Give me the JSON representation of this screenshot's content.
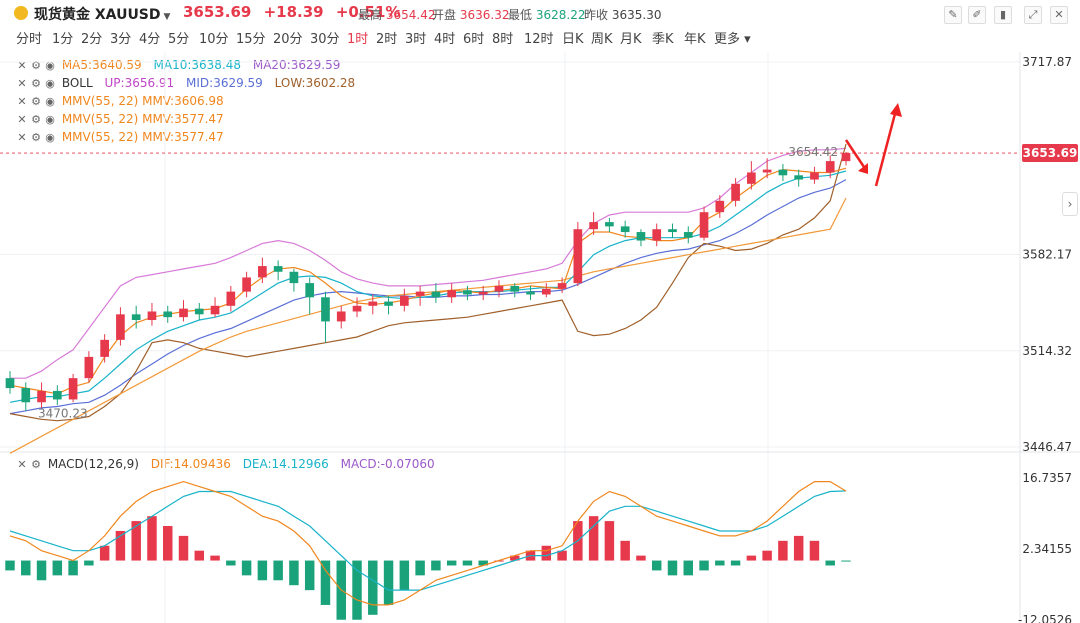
{
  "header": {
    "title": "现货黄金 XAUUSD",
    "last": "3653.69",
    "change": "+18.39",
    "change_pct": "+0.51%",
    "stats": [
      {
        "label": "最高",
        "value": "3654.42"
      },
      {
        "label": "开盘",
        "value": "3636.32"
      },
      {
        "label": "最低",
        "value": "3628.22"
      },
      {
        "label": "昨收",
        "value": "3635.30"
      }
    ]
  },
  "timeframes": [
    "分时",
    "1分",
    "2分",
    "3分",
    "4分",
    "5分",
    "10分",
    "15分",
    "20分",
    "30分",
    "1时",
    "2时",
    "3时",
    "4时",
    "6时",
    "8时",
    "12时",
    "日K",
    "周K",
    "月K",
    "季K",
    "年K",
    "更多"
  ],
  "active_timeframe": "1时",
  "indicators": [
    {
      "name": "MA5:3640.59",
      "extra": [
        "MA10:3638.48",
        "MA20:3629.59"
      ]
    },
    {
      "name": "BOLL",
      "extra": [
        "UP:3656.91",
        "MID:3629.59",
        "LOW:3602.28"
      ]
    },
    {
      "name": "MMV(55, 22) MMV:3606.98",
      "extra": []
    },
    {
      "name": "MMV(55, 22) MMV:3577.47",
      "extra": []
    },
    {
      "name": "MMV(55, 22) MMV:3577.47",
      "extra": []
    }
  ],
  "macd_legend": {
    "name": "MACD(12,26,9)",
    "dif": "DIF:14.09436",
    "dea": "DEA:14.12966",
    "macd": "MACD:-0.07060"
  },
  "chart_data": {
    "type": "candlestick",
    "price_axis": {
      "ticks": [
        3717.87,
        3582.17,
        3514.32,
        3446.47
      ],
      "range": [
        3446.47,
        3717.87
      ]
    },
    "current_price_label": "3653.69",
    "annotations": {
      "high": "3654.42",
      "low": "3470.23"
    },
    "ma5": [
      3490,
      3488,
      3486,
      3484,
      3489,
      3492,
      3510,
      3525,
      3534,
      3538,
      3540,
      3542,
      3543,
      3544,
      3548,
      3558,
      3566,
      3572,
      3573,
      3570,
      3562,
      3553,
      3548,
      3547,
      3548,
      3550,
      3553,
      3555,
      3557,
      3556,
      3555,
      3557,
      3558,
      3560,
      3559,
      3558,
      3590,
      3598,
      3598,
      3595,
      3594,
      3592,
      3592,
      3594,
      3606,
      3612,
      3622,
      3630,
      3638,
      3642,
      3641,
      3640,
      3640,
      3643
    ],
    "ma10": [
      3478,
      3480,
      3482,
      3482,
      3484,
      3486,
      3495,
      3505,
      3515,
      3522,
      3528,
      3532,
      3536,
      3538,
      3541,
      3548,
      3555,
      3562,
      3566,
      3567,
      3566,
      3562,
      3556,
      3553,
      3552,
      3551,
      3552,
      3553,
      3555,
      3556,
      3556,
      3556,
      3557,
      3558,
      3559,
      3559,
      3570,
      3582,
      3588,
      3592,
      3594,
      3594,
      3594,
      3594,
      3597,
      3602,
      3610,
      3618,
      3626,
      3632,
      3636,
      3637,
      3638,
      3641
    ],
    "ma20": [
      3470,
      3472,
      3474,
      3475,
      3477,
      3478,
      3483,
      3490,
      3498,
      3505,
      3512,
      3518,
      3523,
      3527,
      3530,
      3535,
      3540,
      3545,
      3550,
      3553,
      3555,
      3556,
      3555,
      3554,
      3553,
      3553,
      3552,
      3552,
      3553,
      3553,
      3554,
      3554,
      3555,
      3556,
      3556,
      3557,
      3561,
      3566,
      3571,
      3576,
      3580,
      3583,
      3585,
      3586,
      3589,
      3592,
      3597,
      3603,
      3610,
      3616,
      3622,
      3626,
      3629,
      3635
    ],
    "boll_up": [
      3495,
      3495,
      3500,
      3508,
      3515,
      3530,
      3545,
      3560,
      3566,
      3568,
      3570,
      3572,
      3574,
      3576,
      3580,
      3585,
      3590,
      3592,
      3590,
      3585,
      3578,
      3570,
      3565,
      3562,
      3560,
      3560,
      3560,
      3561,
      3562,
      3563,
      3564,
      3566,
      3568,
      3570,
      3572,
      3576,
      3592,
      3604,
      3610,
      3612,
      3612,
      3612,
      3612,
      3612,
      3615,
      3622,
      3632,
      3640,
      3648,
      3652,
      3655,
      3656,
      3656,
      3657
    ],
    "boll_low": [
      3440,
      3440,
      3442,
      3444,
      3446,
      3448,
      3450,
      3452,
      3455,
      3462,
      3478,
      3490,
      3496,
      3498,
      3505,
      3515,
      3525,
      3530,
      3532,
      3530,
      3525,
      3530,
      3540,
      3547,
      3548,
      3549,
      3549,
      3550,
      3550,
      3552,
      3553,
      3554,
      3555,
      3556,
      3554,
      3546,
      3532,
      3528,
      3532,
      3537,
      3543,
      3549,
      3553,
      3560,
      3568,
      3574,
      3580,
      3585,
      3588,
      3588,
      3590,
      3594,
      3600,
      3602
    ],
    "mmv_slow": [
      3442,
      3448,
      3454,
      3460,
      3466,
      3472,
      3478,
      3484,
      3490,
      3496,
      3502,
      3508,
      3514,
      3519,
      3524,
      3528,
      3531,
      3534,
      3537,
      3540,
      3543,
      3546,
      3549,
      3551,
      3553,
      3554,
      3555,
      3556,
      3557,
      3558,
      3559,
      3560,
      3561,
      3562,
      3563,
      3564,
      3567,
      3570,
      3572,
      3574,
      3576,
      3578,
      3580,
      3582,
      3584,
      3586,
      3588,
      3590,
      3592,
      3594,
      3596,
      3598,
      3600,
      3622
    ],
    "mmv_fast": [
      3470,
      3468,
      3466,
      3465,
      3466,
      3468,
      3475,
      3484,
      3500,
      3520,
      3522,
      3520,
      3516,
      3514,
      3512,
      3510,
      3512,
      3514,
      3516,
      3518,
      3520,
      3522,
      3524,
      3528,
      3532,
      3534,
      3535,
      3536,
      3537,
      3538,
      3540,
      3542,
      3544,
      3546,
      3548,
      3550,
      3528,
      3525,
      3526,
      3530,
      3536,
      3545,
      3562,
      3580,
      3590,
      3588,
      3585,
      3586,
      3590,
      3596,
      3600,
      3608,
      3620,
      3660
    ],
    "candles": [
      [
        3495,
        3488,
        3500,
        3484
      ],
      [
        3488,
        3478,
        3492,
        3472
      ],
      [
        3478,
        3486,
        3492,
        3474
      ],
      [
        3486,
        3480,
        3490,
        3476
      ],
      [
        3480,
        3495,
        3498,
        3478
      ],
      [
        3495,
        3510,
        3514,
        3492
      ],
      [
        3510,
        3522,
        3526,
        3506
      ],
      [
        3522,
        3540,
        3545,
        3518
      ],
      [
        3540,
        3536,
        3546,
        3530
      ],
      [
        3536,
        3542,
        3548,
        3532
      ],
      [
        3542,
        3538,
        3546,
        3534
      ],
      [
        3538,
        3544,
        3550,
        3535
      ],
      [
        3544,
        3540,
        3548,
        3536
      ],
      [
        3540,
        3546,
        3552,
        3538
      ],
      [
        3546,
        3556,
        3560,
        3542
      ],
      [
        3556,
        3566,
        3570,
        3552
      ],
      [
        3566,
        3574,
        3580,
        3562
      ],
      [
        3574,
        3570,
        3578,
        3564
      ],
      [
        3570,
        3562,
        3572,
        3556
      ],
      [
        3562,
        3552,
        3566,
        3540
      ],
      [
        3552,
        3535,
        3556,
        3520
      ],
      [
        3535,
        3542,
        3546,
        3530
      ],
      [
        3542,
        3546,
        3552,
        3538
      ],
      [
        3546,
        3549,
        3554,
        3540
      ],
      [
        3549,
        3546,
        3553,
        3540
      ],
      [
        3546,
        3553,
        3558,
        3542
      ],
      [
        3553,
        3556,
        3560,
        3546
      ],
      [
        3556,
        3552,
        3562,
        3548
      ],
      [
        3552,
        3557,
        3562,
        3548
      ],
      [
        3557,
        3554,
        3560,
        3550
      ],
      [
        3554,
        3556,
        3560,
        3550
      ],
      [
        3556,
        3560,
        3564,
        3552
      ],
      [
        3560,
        3556,
        3562,
        3552
      ],
      [
        3556,
        3554,
        3560,
        3550
      ],
      [
        3554,
        3558,
        3562,
        3552
      ],
      [
        3558,
        3562,
        3566,
        3555
      ],
      [
        3562,
        3600,
        3605,
        3560
      ],
      [
        3600,
        3605,
        3612,
        3596
      ],
      [
        3605,
        3602,
        3608,
        3598
      ],
      [
        3602,
        3598,
        3606,
        3594
      ],
      [
        3598,
        3592,
        3600,
        3588
      ],
      [
        3592,
        3600,
        3604,
        3588
      ],
      [
        3600,
        3598,
        3604,
        3594
      ],
      [
        3598,
        3594,
        3602,
        3590
      ],
      [
        3594,
        3612,
        3616,
        3592
      ],
      [
        3612,
        3620,
        3624,
        3608
      ],
      [
        3620,
        3632,
        3636,
        3616
      ],
      [
        3632,
        3640,
        3648,
        3628
      ],
      [
        3640,
        3642,
        3650,
        3636
      ],
      [
        3642,
        3638,
        3646,
        3634
      ],
      [
        3638,
        3635,
        3642,
        3630
      ],
      [
        3635,
        3640,
        3644,
        3632
      ],
      [
        3640,
        3648,
        3652,
        3636
      ],
      [
        3648,
        3653.69,
        3654.42,
        3645
      ]
    ],
    "macd_axis": {
      "ticks": [
        16.7357,
        2.34155,
        -12.0526
      ],
      "range": [
        -12.0526,
        16.7357
      ]
    },
    "macd_dif": [
      5,
      4,
      2,
      1,
      0,
      2,
      5,
      9,
      12,
      14,
      15,
      16,
      15,
      14,
      13,
      11,
      9,
      8,
      6,
      3,
      -2,
      -6,
      -8,
      -9,
      -9,
      -8,
      -6,
      -4,
      -3,
      -2,
      -1,
      0,
      1,
      2,
      2,
      3,
      8,
      12,
      14,
      13,
      11,
      9,
      8,
      7,
      6,
      5,
      5,
      6,
      8,
      11,
      14,
      16,
      16,
      14.09
    ],
    "macd_dea": [
      6,
      5,
      4,
      3,
      2,
      2,
      3,
      5,
      7,
      9,
      11,
      13,
      14,
      14,
      14,
      13,
      12,
      11,
      9,
      7,
      4,
      1,
      -2,
      -4,
      -6,
      -6,
      -6,
      -5,
      -4,
      -3,
      -2,
      -1,
      0,
      1,
      1,
      2,
      4,
      7,
      10,
      11,
      11,
      10,
      9,
      8,
      7,
      6,
      6,
      6,
      7,
      9,
      11,
      13,
      14,
      14.13
    ],
    "macd_hist": [
      -2,
      -3,
      -4,
      -3,
      -3,
      -1,
      3,
      6,
      8,
      9,
      7,
      5,
      2,
      1,
      -1,
      -3,
      -4,
      -4,
      -5,
      -6,
      -9,
      -12,
      -12,
      -11,
      -9,
      -6,
      -3,
      -2,
      -1,
      -1,
      -1,
      0,
      1,
      2,
      3,
      2,
      8,
      9,
      8,
      4,
      1,
      -2,
      -3,
      -3,
      -2,
      -1,
      -1,
      1,
      2,
      4,
      5,
      4,
      -1,
      -0.07
    ]
  }
}
